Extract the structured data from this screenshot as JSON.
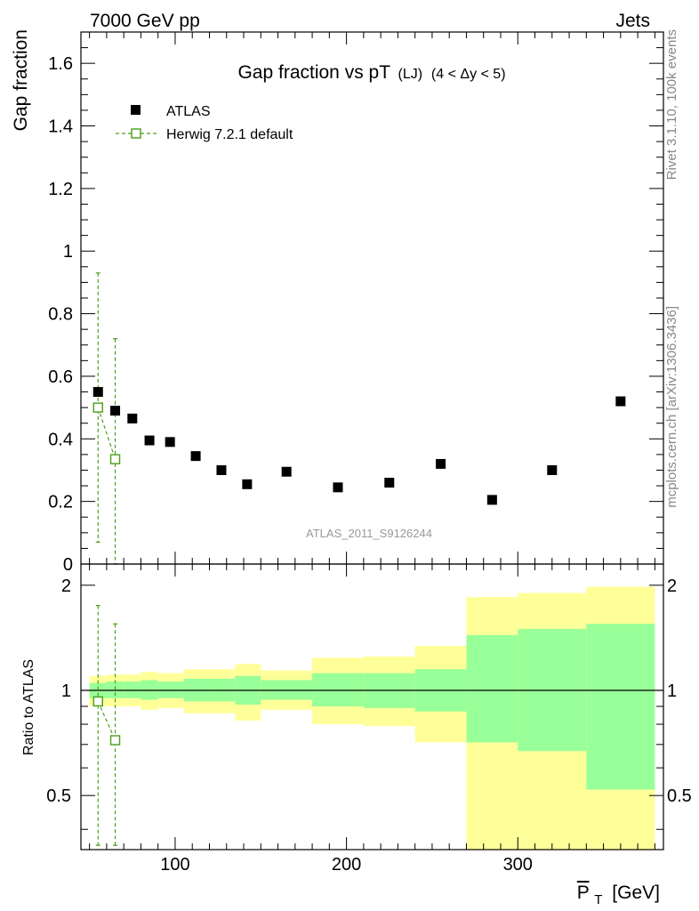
{
  "header": {
    "left": "7000 GeV pp",
    "right": "Jets"
  },
  "side_text": {
    "rivet": "Rivet 3.1.10,  100k events",
    "mcplots": "mcplots.cern.ch [arXiv:1306.3436]"
  },
  "chart_data": {
    "type": "scatter",
    "title": {
      "main": "Gap fraction vs pT",
      "sub": "(LJ)",
      "range": "(4 < Δy < 5)"
    },
    "ylabel": "Gap fraction",
    "ratio_ylabel": "Ratio to ATLAS",
    "xlabel": {
      "var": "P",
      "sub": "T",
      "unit": "[GeV]"
    },
    "analysis_label": "ATLAS_2011_S9126244",
    "xlim": [
      45,
      385
    ],
    "ylim": [
      0,
      1.7
    ],
    "ratio_ylim": [
      0.35,
      2.3
    ],
    "x_ticks": [
      100,
      200,
      300
    ],
    "x_tick_labels": [
      "100",
      "200",
      "300"
    ],
    "y_ticks": [
      0,
      0.2,
      0.4,
      0.6,
      0.8,
      1,
      1.2,
      1.4,
      1.6
    ],
    "y_tick_labels": [
      "0",
      "0.2",
      "0.4",
      "0.6",
      "0.8",
      "1",
      "1.2",
      "1.4",
      "1.6"
    ],
    "ratio_ticks": [
      0.5,
      1,
      2
    ],
    "ratio_tick_labels": [
      "0.5",
      "1",
      "2"
    ],
    "legend": [
      {
        "name": "ATLAS",
        "marker": "filled-square",
        "color": "#000000"
      },
      {
        "name": "Herwig 7.2.1 default",
        "marker": "open-square",
        "color": "#4a9e1a"
      }
    ],
    "series": [
      {
        "name": "ATLAS",
        "x": [
          55,
          65,
          75,
          85,
          97,
          112,
          127,
          142,
          165,
          195,
          225,
          255,
          285,
          320,
          360
        ],
        "y": [
          0.55,
          0.49,
          0.465,
          0.395,
          0.39,
          0.345,
          0.3,
          0.255,
          0.295,
          0.245,
          0.26,
          0.32,
          0.205,
          0.3,
          0.52
        ]
      },
      {
        "name": "Herwig 7.2.1 default",
        "x": [
          55,
          65
        ],
        "y": [
          0.5,
          0.335
        ],
        "y_err_low": [
          0.07,
          0.0
        ],
        "y_err_high": [
          0.93,
          0.72
        ]
      }
    ],
    "ratio": {
      "reference": 1.0,
      "bands": [
        {
          "x0": 50,
          "x1": 60,
          "stat_lo": 0.95,
          "stat_hi": 1.05,
          "tot_lo": 0.9,
          "tot_hi": 1.1
        },
        {
          "x0": 60,
          "x1": 70,
          "stat_lo": 0.95,
          "stat_hi": 1.06,
          "tot_lo": 0.9,
          "tot_hi": 1.11
        },
        {
          "x0": 70,
          "x1": 80,
          "stat_lo": 0.95,
          "stat_hi": 1.06,
          "tot_lo": 0.9,
          "tot_hi": 1.11
        },
        {
          "x0": 80,
          "x1": 90,
          "stat_lo": 0.94,
          "stat_hi": 1.07,
          "tot_lo": 0.88,
          "tot_hi": 1.13
        },
        {
          "x0": 90,
          "x1": 105,
          "stat_lo": 0.95,
          "stat_hi": 1.06,
          "tot_lo": 0.89,
          "tot_hi": 1.12
        },
        {
          "x0": 105,
          "x1": 120,
          "stat_lo": 0.93,
          "stat_hi": 1.08,
          "tot_lo": 0.86,
          "tot_hi": 1.15
        },
        {
          "x0": 120,
          "x1": 135,
          "stat_lo": 0.93,
          "stat_hi": 1.08,
          "tot_lo": 0.86,
          "tot_hi": 1.15
        },
        {
          "x0": 135,
          "x1": 150,
          "stat_lo": 0.91,
          "stat_hi": 1.1,
          "tot_lo": 0.82,
          "tot_hi": 1.19
        },
        {
          "x0": 150,
          "x1": 180,
          "stat_lo": 0.94,
          "stat_hi": 1.07,
          "tot_lo": 0.88,
          "tot_hi": 1.14
        },
        {
          "x0": 180,
          "x1": 210,
          "stat_lo": 0.9,
          "stat_hi": 1.12,
          "tot_lo": 0.8,
          "tot_hi": 1.24
        },
        {
          "x0": 210,
          "x1": 240,
          "stat_lo": 0.89,
          "stat_hi": 1.12,
          "tot_lo": 0.79,
          "tot_hi": 1.25
        },
        {
          "x0": 240,
          "x1": 270,
          "stat_lo": 0.87,
          "stat_hi": 1.15,
          "tot_lo": 0.71,
          "tot_hi": 1.34
        },
        {
          "x0": 270,
          "x1": 300,
          "stat_lo": 0.71,
          "stat_hi": 1.44,
          "tot_lo": 0.35,
          "tot_hi": 1.85
        },
        {
          "x0": 300,
          "x1": 340,
          "stat_lo": 0.67,
          "stat_hi": 1.5,
          "tot_lo": 0.35,
          "tot_hi": 1.9
        },
        {
          "x0": 340,
          "x1": 380,
          "stat_lo": 0.52,
          "stat_hi": 1.55,
          "tot_lo": 0.35,
          "tot_hi": 1.98
        }
      ],
      "mc": {
        "x": [
          55,
          65
        ],
        "y": [
          0.93,
          0.72
        ],
        "y_err_low": [
          0.36,
          0.36
        ],
        "y_err_high": [
          1.75,
          1.55
        ]
      }
    }
  }
}
